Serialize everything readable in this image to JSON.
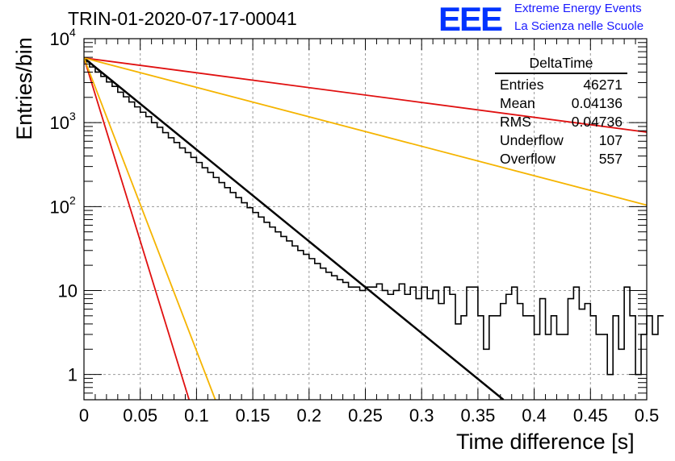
{
  "plot_title": "TRIN-01-2020-07-17-00041",
  "logo": {
    "mark": "EEE",
    "line1": "Extreme Energy Events",
    "line2": "La Scienza nelle Scuole",
    "color": "#1a1aff"
  },
  "stats": {
    "title": "DeltaTime",
    "rows": [
      {
        "label": "Entries",
        "value": "46271"
      },
      {
        "label": "Mean",
        "value": "0.04136"
      },
      {
        "label": "RMS",
        "value": "0.04736"
      },
      {
        "label": "Underflow",
        "value": "107"
      },
      {
        "label": "Overflow",
        "value": "557"
      }
    ]
  },
  "chart_data": {
    "type": "line",
    "title": "TRIN-01-2020-07-17-00041",
    "xlabel": "Time difference [s]",
    "ylabel": "Entries/bin",
    "xlim": [
      0,
      0.5
    ],
    "ylim": [
      0.5,
      10000
    ],
    "yscale": "log",
    "grid": true,
    "x_ticks": [
      "0",
      "0.05",
      "0.1",
      "0.15",
      "0.2",
      "0.25",
      "0.3",
      "0.35",
      "0.4",
      "0.45",
      "0.5"
    ],
    "y_ticks": [
      {
        "value": 1,
        "label": "1"
      },
      {
        "value": 10,
        "label": "10"
      },
      {
        "value": 100,
        "label": "10^2"
      },
      {
        "value": 1000,
        "label": "10^3"
      },
      {
        "value": 10000,
        "label": "10^4"
      }
    ],
    "histogram": {
      "bin_width": 0.005,
      "color": "#000000",
      "counts": [
        5300,
        4600,
        4000,
        3550,
        3050,
        2700,
        2300,
        2030,
        1760,
        1540,
        1330,
        1180,
        1000,
        880,
        760,
        660,
        580,
        500,
        440,
        385,
        335,
        290,
        255,
        222,
        193,
        168,
        147,
        128,
        111,
        97,
        85,
        75,
        65,
        57,
        50,
        44,
        39,
        34,
        30,
        27,
        24,
        21,
        18.5,
        16.5,
        15,
        13.5,
        12.5,
        11,
        11,
        10,
        11,
        11,
        12,
        10,
        9,
        10,
        12,
        9,
        11,
        8,
        11,
        8,
        10,
        7,
        11,
        9,
        4,
        5,
        11,
        11,
        5,
        2,
        5,
        5,
        7,
        9,
        11,
        7,
        5,
        5,
        3,
        8,
        3,
        5,
        3,
        3,
        8,
        11,
        6,
        7,
        5,
        3,
        3,
        1,
        5,
        2,
        11,
        5,
        1,
        3,
        5,
        3,
        5
      ]
    },
    "series": [
      {
        "color": "#000000",
        "width": 2.5,
        "x": [
          0,
          0.3727
        ],
        "y": [
          5900,
          0.5
        ]
      },
      {
        "color": "#e01010",
        "width": 1.8,
        "x": [
          0,
          0.5
        ],
        "y": [
          5900,
          770
        ]
      },
      {
        "color": "#e01010",
        "width": 1.8,
        "x": [
          0,
          0.0934
        ],
        "y": [
          5900,
          0.5
        ]
      },
      {
        "color": "#f5b400",
        "width": 1.8,
        "x": [
          0,
          0.5
        ],
        "y": [
          5900,
          104
        ]
      },
      {
        "color": "#f5b400",
        "width": 1.8,
        "x": [
          0,
          0.1167
        ],
        "y": [
          5900,
          0.5
        ]
      }
    ]
  }
}
